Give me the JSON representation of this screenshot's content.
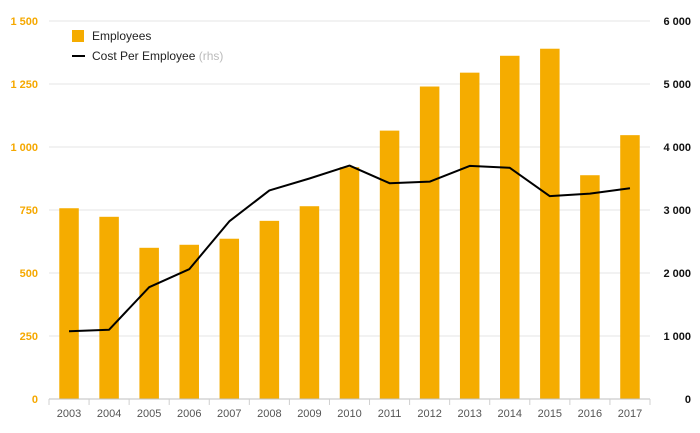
{
  "chart_data": {
    "type": "bar+line",
    "categories": [
      "2003",
      "2004",
      "2005",
      "2006",
      "2007",
      "2008",
      "2009",
      "2010",
      "2011",
      "2012",
      "2013",
      "2014",
      "2015",
      "2016",
      "2017"
    ],
    "series": [
      {
        "name": "Employees",
        "type": "bar",
        "axis": "left",
        "color": "#f5ac00",
        "values": [
          757,
          723,
          600,
          612,
          636,
          707,
          765,
          920,
          1065,
          1240,
          1295,
          1362,
          1390,
          888,
          1047
        ]
      },
      {
        "name": "Cost Per Employee",
        "name_suffix": "(rhs)",
        "type": "line",
        "axis": "right",
        "color": "#000000",
        "values": [
          1075,
          1100,
          1775,
          2060,
          2820,
          3310,
          3500,
          3705,
          3425,
          3450,
          3700,
          3670,
          3220,
          3260,
          3345
        ]
      }
    ],
    "y_left": {
      "ylim": [
        0,
        1500
      ],
      "ticks": [
        0,
        250,
        500,
        750,
        1000,
        1250,
        1500
      ],
      "tick_labels": [
        "0",
        "250",
        "500",
        "750",
        "1 000",
        "1 250",
        "1 500"
      ]
    },
    "y_right": {
      "ylim": [
        0,
        6000
      ],
      "ticks": [
        0,
        1000,
        2000,
        3000,
        4000,
        5000,
        6000
      ],
      "tick_labels": [
        "0",
        "1 000",
        "2 000",
        "3 000",
        "4 000",
        "5 000",
        "6 000"
      ]
    },
    "grid": true,
    "legend": "top-left"
  }
}
